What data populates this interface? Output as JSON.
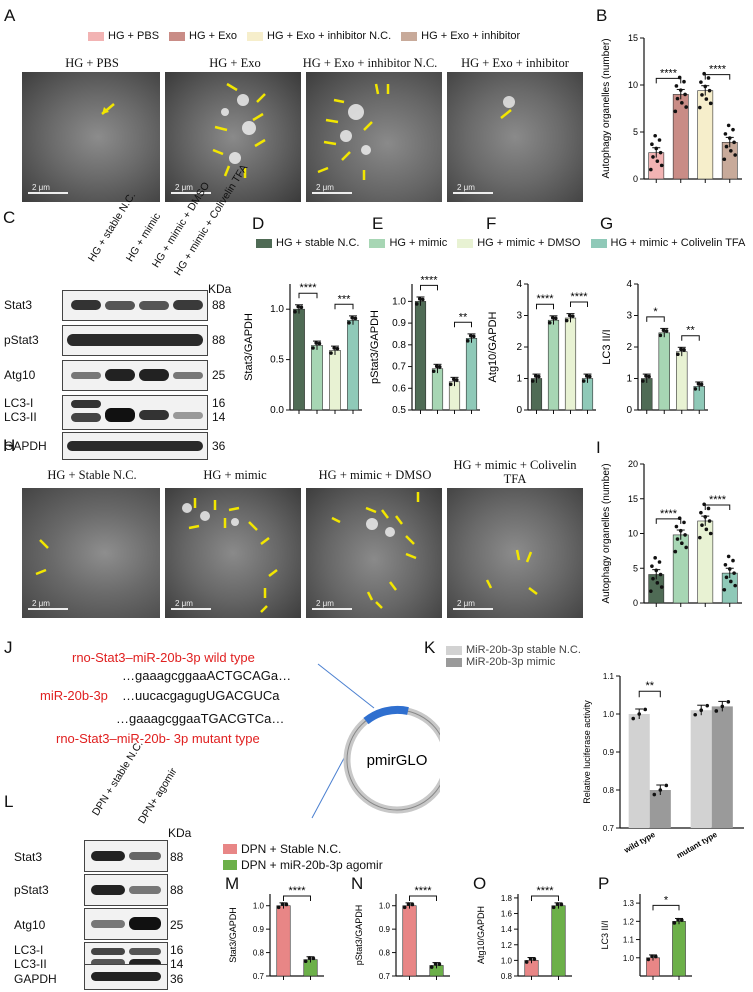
{
  "panel_labels": {
    "A": "A",
    "B": "B",
    "C": "C",
    "D": "D",
    "E": "E",
    "F": "F",
    "G": "G",
    "H": "H",
    "I": "I",
    "J": "J",
    "K": "K",
    "L": "L",
    "M": "M",
    "N": "N",
    "O": "O",
    "P": "P"
  },
  "colors": {
    "pbs": "#f2b3b3",
    "exo": "#c98c86",
    "inhNC": "#f6eecb",
    "inh": "#c8aa9a",
    "stableNC": "#4f6b55",
    "mimic": "#a7d6b4",
    "mimicDMSO": "#e8f2d3",
    "colivelin": "#8fc9b8",
    "dpnNC": "#e88686",
    "agomir": "#6cb049",
    "lucNC": "#d2d2d2",
    "lucMimic": "#9a9a9a",
    "arrow": "#f2e600"
  },
  "legend_A": [
    "HG + PBS",
    "HG + Exo",
    "HG + Exo + inhibitor N.C.",
    "HG + Exo + inhibitor"
  ],
  "em_A_titles": [
    "HG + PBS",
    "HG + Exo",
    "HG + Exo + inhibitor N.C.",
    "HG + Exo + inhibitor"
  ],
  "em_scale": [
    "2 μm",
    "2 μm",
    "2 μm",
    "2 μm"
  ],
  "legend_DG": [
    "HG + stable N.C.",
    "HG + mimic",
    "HG + mimic + DMSO",
    "HG + mimic + Colivelin TFA"
  ],
  "wb_C": {
    "lanes": [
      "HG + stable N.C.",
      "HG + mimic",
      "HG + mimic + DMSO",
      "HG + mimic + Colivelin TFA"
    ],
    "rows": [
      "Stat3",
      "pStat3",
      "Atg10",
      "LC3-I",
      "LC3-II",
      "GAPDH"
    ],
    "kda_header": "KDa",
    "kda": [
      "88",
      "88",
      "25",
      "16",
      "14",
      "36"
    ]
  },
  "em_H_titles": [
    "HG + Stable N.C.",
    "HG + mimic",
    "HG + mimic + DMSO",
    "HG + mimic + Colivelin TFA"
  ],
  "seq_J": {
    "wt_label": "rno-Stat3–miR-20b-3p wild type",
    "wt_seq": "…gaaagcggaaACTGCAGa…",
    "mir_label": "miR-20b-3p",
    "mir_seq": "…uucacgagugUGACGUCa",
    "mut_seq": "…gaaagcggaaTGACGTCa…",
    "mut_label": "rno-Stat3–miR-20b- 3p mutant type",
    "plasmid": "pmirGLO"
  },
  "legend_K": [
    "MiR-20b-3p stable N.C.",
    "MiR-20b-3p mimic"
  ],
  "wb_L": {
    "lanes": [
      "DPN + stable N.C.",
      "DPN+ agomir"
    ],
    "rows": [
      "Stat3",
      "pStat3",
      "Atg10",
      "LC3-I",
      "LC3-II",
      "GAPDH"
    ],
    "kda_header": "KDa",
    "kda": [
      "88",
      "88",
      "25",
      "16",
      "14",
      "36"
    ]
  },
  "legend_MP": [
    "DPN + Stable N.C.",
    "DPN + miR-20b-3p agomir"
  ],
  "chart_data": [
    {
      "panel": "B",
      "type": "bar",
      "ylabel": "Autophagy organelles (number)",
      "ylim": [
        0,
        15
      ],
      "yticks": [
        0,
        5,
        10,
        15
      ],
      "categories": [
        "HG + PBS",
        "HG + Exo",
        "HG + Exo + inhibitor N.C.",
        "HG + Exo + inhibitor"
      ],
      "values": [
        2.8,
        9.0,
        9.4,
        3.9
      ],
      "sig": [
        {
          "from": 0,
          "to": 1,
          "label": "****"
        },
        {
          "from": 2,
          "to": 3,
          "label": "****"
        }
      ]
    },
    {
      "panel": "D",
      "type": "bar",
      "ylabel": "Stat3/GAPDH",
      "ylim": [
        0,
        1.25
      ],
      "yticks": [
        0.0,
        0.5,
        1.0
      ],
      "categories": [
        "HG + stable N.C.",
        "HG + mimic",
        "HG + mimic + DMSO",
        "HG + mimic + Colivelin TFA"
      ],
      "values": [
        1.0,
        0.64,
        0.59,
        0.89
      ],
      "sig": [
        {
          "from": 0,
          "to": 1,
          "label": "****"
        },
        {
          "from": 2,
          "to": 3,
          "label": "***"
        }
      ]
    },
    {
      "panel": "E",
      "type": "bar",
      "ylabel": "pStat3/GAPDH",
      "ylim": [
        0.5,
        1.08
      ],
      "yticks": [
        0.5,
        0.6,
        0.7,
        0.8,
        0.9,
        1.0
      ],
      "categories": [
        "HG + stable N.C.",
        "HG + mimic",
        "HG + mimic + DMSO",
        "HG + mimic + Colivelin TFA"
      ],
      "values": [
        1.0,
        0.69,
        0.63,
        0.83
      ],
      "sig": [
        {
          "from": 0,
          "to": 1,
          "label": "****"
        },
        {
          "from": 2,
          "to": 3,
          "label": "**"
        }
      ]
    },
    {
      "panel": "F",
      "type": "bar",
      "ylabel": "Atg10/GAPDH",
      "ylim": [
        0,
        4
      ],
      "yticks": [
        0,
        1,
        2,
        3,
        4
      ],
      "categories": [
        "HG + stable N.C.",
        "HG + mimic",
        "HG + mimic + DMSO",
        "HG + mimic + Colivelin TFA"
      ],
      "values": [
        1.0,
        2.85,
        2.92,
        1.0
      ],
      "sig": [
        {
          "from": 0,
          "to": 1,
          "label": "****"
        },
        {
          "from": 2,
          "to": 3,
          "label": "****"
        }
      ]
    },
    {
      "panel": "G",
      "type": "bar",
      "ylabel": "LC3 II/I",
      "ylim": [
        0,
        4
      ],
      "yticks": [
        0,
        1,
        2,
        3,
        4
      ],
      "categories": [
        "HG + stable N.C.",
        "HG + mimic",
        "HG + mimic + DMSO",
        "HG + mimic + Colivelin TFA"
      ],
      "values": [
        1.0,
        2.45,
        1.85,
        0.75
      ],
      "sig": [
        {
          "from": 0,
          "to": 1,
          "label": "*"
        },
        {
          "from": 2,
          "to": 3,
          "label": "**"
        }
      ]
    },
    {
      "panel": "I",
      "type": "bar",
      "ylabel": "Autophagy organelles (number)",
      "ylim": [
        0,
        20
      ],
      "yticks": [
        0,
        5,
        10,
        15,
        20
      ],
      "categories": [
        "HG + Stable N.C.",
        "HG + mimic",
        "HG + mimic + DMSO",
        "HG + mimic + Colivelin TFA"
      ],
      "values": [
        4.1,
        9.8,
        11.8,
        4.3
      ],
      "sig": [
        {
          "from": 0,
          "to": 1,
          "label": "****"
        },
        {
          "from": 2,
          "to": 3,
          "label": "****"
        }
      ]
    },
    {
      "panel": "K",
      "type": "bar",
      "ylabel": "Relative luciferase activity",
      "ylim": [
        0.7,
        1.1
      ],
      "yticks": [
        0.7,
        0.8,
        0.9,
        1.0,
        1.1
      ],
      "categories": [
        "wild type",
        "mutant type"
      ],
      "series": [
        {
          "name": "MiR-20b-3p stable N.C.",
          "values": [
            1.0,
            1.01
          ]
        },
        {
          "name": "MiR-20b-3p mimic",
          "values": [
            0.8,
            1.02
          ]
        }
      ],
      "sig": [
        {
          "label": "**"
        }
      ]
    },
    {
      "panel": "M",
      "type": "bar",
      "ylabel": "Stat3/GAPDH",
      "ylim": [
        0.7,
        1.05
      ],
      "yticks": [
        0.7,
        0.8,
        0.9,
        1.0
      ],
      "categories": [
        "DPN + Stable N.C.",
        "DPN + miR-20b-3p agomir"
      ],
      "values": [
        1.0,
        0.77
      ],
      "sig": [
        {
          "from": 0,
          "to": 1,
          "label": "****"
        }
      ]
    },
    {
      "panel": "N",
      "type": "bar",
      "ylabel": "pStat3/GAPDH",
      "ylim": [
        0.7,
        1.05
      ],
      "yticks": [
        0.7,
        0.8,
        0.9,
        1.0
      ],
      "categories": [
        "DPN + Stable N.C.",
        "DPN + miR-20b-3p agomir"
      ],
      "values": [
        1.0,
        0.745
      ],
      "sig": [
        {
          "from": 0,
          "to": 1,
          "label": "****"
        }
      ]
    },
    {
      "panel": "O",
      "type": "bar",
      "ylabel": "Atg10/GAPDH",
      "ylim": [
        0.8,
        1.85
      ],
      "yticks": [
        0.8,
        1.0,
        1.2,
        1.4,
        1.6,
        1.8
      ],
      "categories": [
        "DPN + Stable N.C.",
        "DPN + miR-20b-3p agomir"
      ],
      "values": [
        1.0,
        1.7
      ],
      "sig": [
        {
          "from": 0,
          "to": 1,
          "label": "****"
        }
      ]
    },
    {
      "panel": "P",
      "type": "bar",
      "ylabel": "LC3 II/I",
      "ylim": [
        0.9,
        1.35
      ],
      "yticks": [
        1.0,
        1.1,
        1.2,
        1.3
      ],
      "categories": [
        "DPN + Stable N.C.",
        "DPN + miR-20b-3p agomir"
      ],
      "values": [
        1.0,
        1.2
      ],
      "sig": [
        {
          "from": 0,
          "to": 1,
          "label": "*"
        }
      ]
    }
  ]
}
